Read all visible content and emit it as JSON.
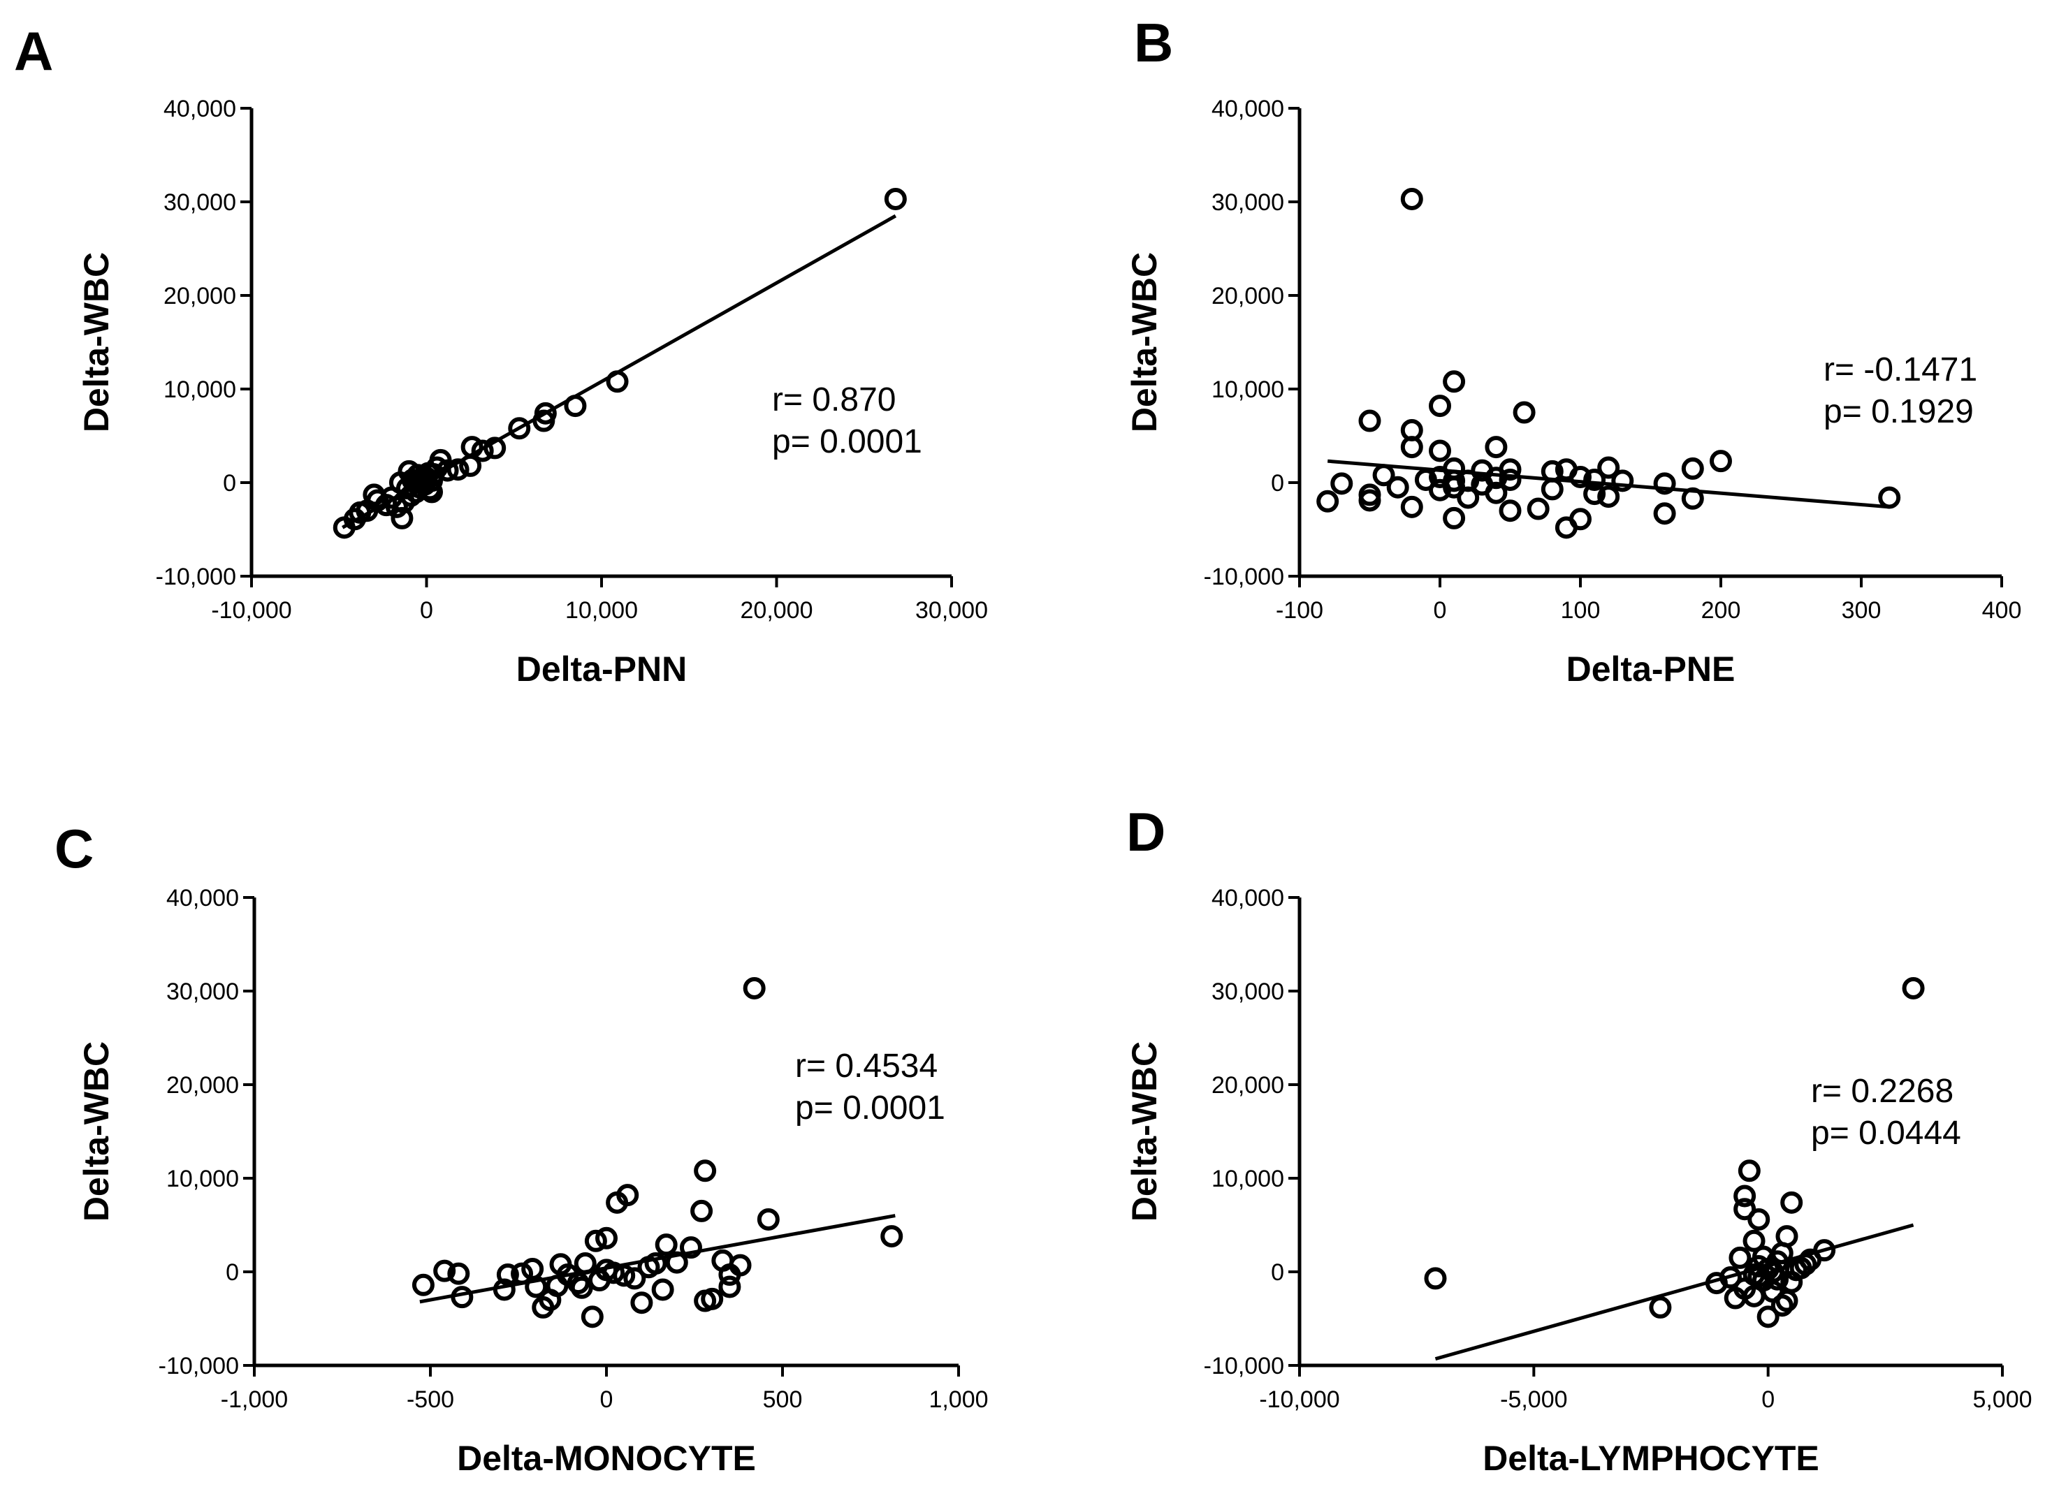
{
  "chart_data": [
    {
      "panel": "A",
      "type": "scatter",
      "xlabel": "Delta-PNN",
      "ylabel": "Delta-WBC",
      "xlim": [
        -10000,
        30000
      ],
      "ylim": [
        -10000,
        40000
      ],
      "xticks": [
        -10000,
        0,
        10000,
        20000,
        30000
      ],
      "xtick_labels": [
        "-10,000",
        "0",
        "10,000",
        "20,000",
        "30,000"
      ],
      "yticks": [
        -10000,
        0,
        10000,
        20000,
        30000,
        40000
      ],
      "ytick_labels": [
        "-10,000",
        "0",
        "10,000",
        "20,000",
        "30,000",
        "40,000"
      ],
      "annotation": [
        "r= 0.870",
        "p= 0.0001"
      ],
      "fit_line": [
        [
          -4800,
          -4800
        ],
        [
          26800,
          28500
        ]
      ],
      "points": [
        [
          26800,
          30300
        ],
        [
          10900,
          10800
        ],
        [
          8500,
          8200
        ],
        [
          6800,
          7400
        ],
        [
          6700,
          6600
        ],
        [
          5300,
          5800
        ],
        [
          3900,
          3700
        ],
        [
          3200,
          3400
        ],
        [
          2600,
          3800
        ],
        [
          2500,
          1800
        ],
        [
          1800,
          1400
        ],
        [
          1200,
          1300
        ],
        [
          800,
          2400
        ],
        [
          600,
          1600
        ],
        [
          400,
          900
        ],
        [
          300,
          200
        ],
        [
          200,
          -700
        ],
        [
          100,
          1000
        ],
        [
          0,
          500
        ],
        [
          -100,
          -200
        ],
        [
          -200,
          400
        ],
        [
          -300,
          100
        ],
        [
          -400,
          -500
        ],
        [
          -500,
          800
        ],
        [
          -600,
          -1000
        ],
        [
          -800,
          300
        ],
        [
          -900,
          -1400
        ],
        [
          -1000,
          1200
        ],
        [
          -1100,
          -600
        ],
        [
          -1300,
          -2100
        ],
        [
          -1400,
          -3800
        ],
        [
          -1500,
          0
        ],
        [
          -1700,
          -2600
        ],
        [
          -2000,
          -1600
        ],
        [
          -2300,
          -2400
        ],
        [
          -2800,
          -1900
        ],
        [
          -3000,
          -1300
        ],
        [
          -3400,
          -3000
        ],
        [
          -3800,
          -3200
        ],
        [
          -4100,
          -3900
        ],
        [
          -4700,
          -4800
        ],
        [
          300,
          -1000
        ],
        [
          -600,
          0
        ]
      ]
    },
    {
      "panel": "B",
      "type": "scatter",
      "xlabel": "Delta-PNE",
      "ylabel": "Delta-WBC",
      "xlim": [
        -100,
        400
      ],
      "ylim": [
        -10000,
        40000
      ],
      "xticks": [
        -100,
        0,
        100,
        200,
        300,
        400
      ],
      "xtick_labels": [
        "-100",
        "0",
        "100",
        "200",
        "300",
        "400"
      ],
      "yticks": [
        -10000,
        0,
        10000,
        20000,
        30000,
        40000
      ],
      "ytick_labels": [
        "-10,000",
        "0",
        "10,000",
        "20,000",
        "30,000",
        "40,000"
      ],
      "annotation": [
        "r= -0.1471",
        "p= 0.1929"
      ],
      "fit_line": [
        [
          -80,
          2300
        ],
        [
          320,
          -2600
        ]
      ],
      "points": [
        [
          -20,
          30300
        ],
        [
          10,
          10800
        ],
        [
          0,
          8200
        ],
        [
          60,
          7500
        ],
        [
          -50,
          6600
        ],
        [
          -20,
          5600
        ],
        [
          0,
          3400
        ],
        [
          -20,
          3800
        ],
        [
          40,
          3800
        ],
        [
          200,
          2300
        ],
        [
          -80,
          -2000
        ],
        [
          -70,
          -100
        ],
        [
          -50,
          -1300
        ],
        [
          -50,
          -1900
        ],
        [
          -40,
          800
        ],
        [
          -30,
          -500
        ],
        [
          -20,
          -2600
        ],
        [
          -10,
          300
        ],
        [
          0,
          -800
        ],
        [
          0,
          600
        ],
        [
          10,
          1500
        ],
        [
          10,
          -500
        ],
        [
          10,
          -3800
        ],
        [
          20,
          -1600
        ],
        [
          20,
          200
        ],
        [
          30,
          1300
        ],
        [
          30,
          -200
        ],
        [
          40,
          500
        ],
        [
          40,
          -1100
        ],
        [
          50,
          1400
        ],
        [
          50,
          -3000
        ],
        [
          50,
          300
        ],
        [
          70,
          -2800
        ],
        [
          80,
          1200
        ],
        [
          80,
          -700
        ],
        [
          90,
          1400
        ],
        [
          90,
          -4800
        ],
        [
          100,
          600
        ],
        [
          100,
          -3900
        ],
        [
          110,
          -1200
        ],
        [
          110,
          300
        ],
        [
          120,
          1600
        ],
        [
          120,
          -1500
        ],
        [
          130,
          200
        ],
        [
          160,
          -3300
        ],
        [
          160,
          -100
        ],
        [
          180,
          1500
        ],
        [
          180,
          -1700
        ],
        [
          320,
          -1600
        ],
        [
          10,
          200
        ]
      ]
    },
    {
      "panel": "C",
      "type": "scatter",
      "xlabel": "Delta-MONOCYTE",
      "ylabel": "Delta-WBC",
      "xlim": [
        -1000,
        1000
      ],
      "ylim": [
        -10000,
        40000
      ],
      "xticks": [
        -1000,
        -500,
        0,
        500,
        1000
      ],
      "xtick_labels": [
        "-1,000",
        "-500",
        "0",
        "500",
        "1,000"
      ],
      "yticks": [
        -10000,
        0,
        10000,
        20000,
        30000,
        40000
      ],
      "ytick_labels": [
        "-10,000",
        "0",
        "10,000",
        "20,000",
        "30,000",
        "40,000"
      ],
      "annotation": [
        "r= 0.4534",
        "p= 0.0001"
      ],
      "fit_line": [
        [
          -530,
          -3200
        ],
        [
          820,
          6000
        ]
      ],
      "points": [
        [
          420,
          30300
        ],
        [
          280,
          10800
        ],
        [
          60,
          8200
        ],
        [
          30,
          7400
        ],
        [
          270,
          6500
        ],
        [
          460,
          5600
        ],
        [
          810,
          3800
        ],
        [
          0,
          3600
        ],
        [
          -30,
          3300
        ],
        [
          240,
          2600
        ],
        [
          170,
          2900
        ],
        [
          330,
          1200
        ],
        [
          380,
          700
        ],
        [
          350,
          -300
        ],
        [
          350,
          -1600
        ],
        [
          300,
          -2900
        ],
        [
          280,
          -3100
        ],
        [
          160,
          -1900
        ],
        [
          100,
          -3300
        ],
        [
          50,
          -400
        ],
        [
          0,
          200
        ],
        [
          -20,
          -900
        ],
        [
          -40,
          -4800
        ],
        [
          -60,
          900
        ],
        [
          -80,
          -1200
        ],
        [
          -110,
          -300
        ],
        [
          -130,
          800
        ],
        [
          -160,
          -3000
        ],
        [
          -180,
          -3800
        ],
        [
          -200,
          -1600
        ],
        [
          -210,
          300
        ],
        [
          -240,
          -200
        ],
        [
          -280,
          -300
        ],
        [
          -290,
          -1900
        ],
        [
          -410,
          -2700
        ],
        [
          -420,
          -200
        ],
        [
          -460,
          100
        ],
        [
          -520,
          -1400
        ],
        [
          -140,
          -1500
        ],
        [
          -70,
          -1700
        ],
        [
          120,
          500
        ],
        [
          140,
          900
        ],
        [
          80,
          -700
        ],
        [
          200,
          1000
        ],
        [
          20,
          -100
        ]
      ]
    },
    {
      "panel": "D",
      "type": "scatter",
      "xlabel": "Delta-LYMPHOCYTE",
      "ylabel": "Delta-WBC",
      "xlim": [
        -10000,
        5000
      ],
      "ylim": [
        -10000,
        40000
      ],
      "xticks": [
        -10000,
        -5000,
        0,
        5000
      ],
      "xtick_labels": [
        "-10,000",
        "-5,000",
        "0",
        "5,000"
      ],
      "yticks": [
        -10000,
        0,
        10000,
        20000,
        30000,
        40000
      ],
      "ytick_labels": [
        "-10,000",
        "0",
        "10,000",
        "20,000",
        "30,000",
        "40,000"
      ],
      "annotation": [
        "r= 0.2268",
        "p= 0.0444"
      ],
      "fit_line": [
        [
          -7100,
          -9300
        ],
        [
          3100,
          5000
        ]
      ],
      "points": [
        [
          3100,
          30300
        ],
        [
          -7100,
          -700
        ],
        [
          -2300,
          -3800
        ],
        [
          -400,
          10800
        ],
        [
          -500,
          8100
        ],
        [
          -500,
          6700
        ],
        [
          500,
          7400
        ],
        [
          -200,
          5600
        ],
        [
          400,
          3800
        ],
        [
          -300,
          3300
        ],
        [
          1200,
          2300
        ],
        [
          900,
          1300
        ],
        [
          700,
          400
        ],
        [
          -600,
          1500
        ],
        [
          -1100,
          -1200
        ],
        [
          -800,
          -600
        ],
        [
          -700,
          -2800
        ],
        [
          -500,
          -1800
        ],
        [
          -300,
          -300
        ],
        [
          -200,
          600
        ],
        [
          -100,
          1600
        ],
        [
          0,
          -4800
        ],
        [
          100,
          -2100
        ],
        [
          200,
          -800
        ],
        [
          300,
          -3600
        ],
        [
          400,
          -3100
        ],
        [
          500,
          -1100
        ],
        [
          600,
          200
        ],
        [
          0,
          300
        ],
        [
          -100,
          -900
        ],
        [
          200,
          1100
        ],
        [
          100,
          0
        ],
        [
          -300,
          -2600
        ],
        [
          300,
          2000
        ],
        [
          800,
          800
        ],
        [
          -200,
          -500
        ]
      ]
    }
  ]
}
